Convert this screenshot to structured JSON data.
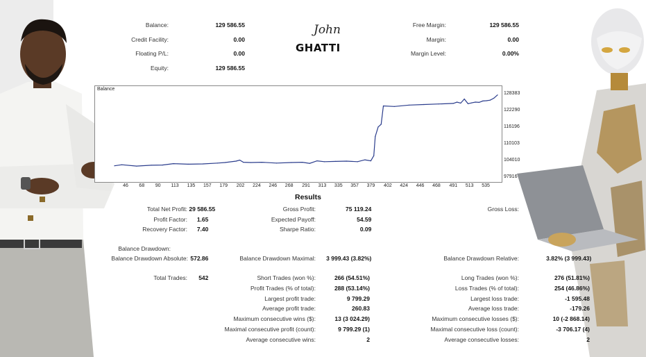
{
  "account": {
    "left": [
      {
        "label": "Balance:",
        "value": "129 586.55"
      },
      {
        "label": "Credit Facility:",
        "value": "0.00"
      },
      {
        "label": "Floating P/L:",
        "value": "0.00"
      },
      {
        "label": "Equity:",
        "value": "129 586.55"
      }
    ],
    "right": [
      {
        "label": "Free Margin:",
        "value": "129 586.55"
      },
      {
        "label": "Margin:",
        "value": "0.00"
      },
      {
        "label": "Margin Level:",
        "value": "0.00%"
      }
    ]
  },
  "logo": {
    "signature": "John",
    "name": "GHATTI"
  },
  "chart_data": {
    "type": "line",
    "title": "Balance",
    "x_ticks": [
      "46",
      "68",
      "90",
      "113",
      "135",
      "157",
      "179",
      "202",
      "224",
      "246",
      "268",
      "291",
      "313",
      "335",
      "357",
      "379",
      "402",
      "424",
      "446",
      "468",
      "491",
      "513",
      "535"
    ],
    "y_ticks": [
      "128383",
      "122290",
      "116196",
      "110103",
      "104010",
      "97916"
    ],
    "ylim": [
      97916,
      128383
    ],
    "xlim": [
      30,
      550
    ],
    "series": [
      {
        "color": "#2a3c8c",
        "x": [
          30,
          40,
          60,
          80,
          95,
          110,
          130,
          150,
          170,
          180,
          195,
          200,
          205,
          215,
          230,
          250,
          270,
          285,
          295,
          305,
          315,
          330,
          345,
          360,
          370,
          378,
          382,
          384,
          388,
          392,
          395,
          410,
          430,
          450,
          470,
          490,
          495,
          500,
          505,
          510,
          515,
          520,
          525,
          530,
          535,
          540,
          545,
          550
        ],
        "y": [
          102300,
          102700,
          102200,
          102500,
          102600,
          103100,
          102900,
          103000,
          103300,
          103500,
          104000,
          104400,
          103600,
          103500,
          103600,
          103300,
          103500,
          103600,
          103200,
          104100,
          103800,
          103900,
          104000,
          103800,
          104500,
          104100,
          106000,
          113000,
          116500,
          117500,
          124200,
          124000,
          124500,
          124700,
          124900,
          125100,
          125600,
          125200,
          126700,
          125000,
          125300,
          125600,
          125500,
          126000,
          126100,
          126300,
          127000,
          128200
        ]
      }
    ]
  },
  "results": {
    "title": "Results",
    "col1": [
      {
        "label": "Total Net Profit:",
        "value": "29 586.55"
      },
      {
        "label": "Profit Factor:",
        "value": "1.65"
      },
      {
        "label": "Recovery Factor:",
        "value": "7.40"
      }
    ],
    "col2": [
      {
        "label": "Gross Profit:",
        "value": "75 119.24"
      },
      {
        "label": "Expected Payoff:",
        "value": "54.59"
      },
      {
        "label": "Sharpe Ratio:",
        "value": "0.09"
      }
    ],
    "col3": [
      {
        "label": "Gross Loss:",
        "value": ""
      }
    ],
    "drawdown_header": "Balance Drawdown:",
    "drawdown": [
      {
        "label": "Balance Drawdown Absolute:",
        "value": "572.86"
      },
      {
        "label": "Balance Drawdown Maximal:",
        "value": "3 999.43 (3.82%)"
      },
      {
        "label": "Balance Drawdown Relative:",
        "value": "3.82% (3 999.43)"
      }
    ],
    "total_trades": {
      "label": "Total Trades:",
      "value": "542"
    },
    "mid": [
      {
        "label": "Short Trades (won %):",
        "value": "266 (54.51%)"
      },
      {
        "label": "Profit Trades (% of total):",
        "value": "288 (53.14%)"
      },
      {
        "label": "Largest profit trade:",
        "value": "9 799.29"
      },
      {
        "label": "Average profit trade:",
        "value": "260.83"
      },
      {
        "label": "Maximum consecutive wins ($):",
        "value": "13 (3 024.29)"
      },
      {
        "label": "Maximal consecutive profit (count):",
        "value": "9 799.29 (1)"
      },
      {
        "label": "Average consecutive wins:",
        "value": "2"
      }
    ],
    "right": [
      {
        "label": "Long Trades (won %):",
        "value": "276 (51.81%)"
      },
      {
        "label": "Loss Trades (% of total):",
        "value": "254 (46.86%)"
      },
      {
        "label": "Largest loss trade:",
        "value": "-1 595.48"
      },
      {
        "label": "Average loss trade:",
        "value": "-179.26"
      },
      {
        "label": "Maximum consecutive losses ($):",
        "value": "10 (-2 868.14)"
      },
      {
        "label": "Maximal consecutive loss (count):",
        "value": "-3 706.17 (4)"
      },
      {
        "label": "Average consecutive losses:",
        "value": "2"
      }
    ]
  }
}
